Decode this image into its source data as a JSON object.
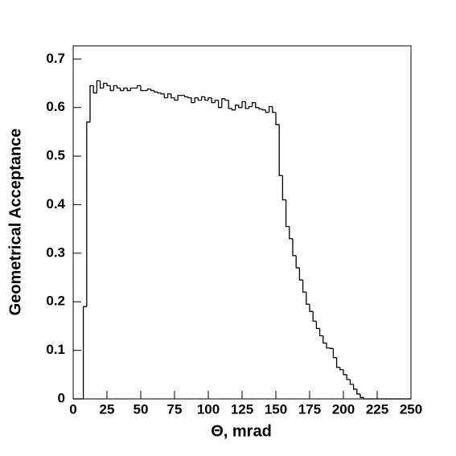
{
  "chart_data": {
    "type": "histogram",
    "x_label": "Θ, mrad",
    "y_label": "Geometrical Acceptance",
    "color": "#000000",
    "xlim": [
      0,
      250
    ],
    "ylim": [
      0,
      0.727
    ],
    "xticks": [
      0,
      25,
      50,
      75,
      100,
      125,
      150,
      175,
      200,
      225,
      250
    ],
    "yticks": [
      0,
      0.1,
      0.2,
      0.3,
      0.4,
      0.5,
      0.6,
      0.7
    ],
    "bins": [
      0,
      2.5,
      5,
      7.5,
      10,
      12.5,
      15,
      17.5,
      20,
      22.5,
      25,
      27.5,
      30,
      32.5,
      35,
      37.5,
      40,
      42.5,
      45,
      47.5,
      50,
      52.5,
      55,
      57.5,
      60,
      62.5,
      65,
      67.5,
      70,
      72.5,
      75,
      77.5,
      80,
      82.5,
      85,
      87.5,
      90,
      92.5,
      95,
      97.5,
      100,
      102.5,
      105,
      107.5,
      110,
      112.5,
      115,
      117.5,
      120,
      122.5,
      125,
      127.5,
      130,
      132.5,
      135,
      137.5,
      140,
      142.5,
      145,
      147.5,
      150,
      152.5,
      155,
      157.5,
      160,
      162.5,
      165,
      167.5,
      170,
      172.5,
      175,
      177.5,
      180,
      182.5,
      185,
      187.5,
      190,
      192.5,
      195,
      197.5,
      200,
      202.5,
      205,
      207.5,
      210,
      212.5,
      215,
      217.5,
      220,
      222.5,
      225,
      227.5,
      230,
      232.5,
      235,
      237.5,
      240,
      242.5,
      245,
      247.5,
      250
    ],
    "values": [
      0,
      0,
      0,
      0.19,
      0.57,
      0.645,
      0.63,
      0.655,
      0.64,
      0.65,
      0.645,
      0.635,
      0.645,
      0.64,
      0.635,
      0.64,
      0.635,
      0.64,
      0.64,
      0.645,
      0.635,
      0.635,
      0.638,
      0.635,
      0.632,
      0.63,
      0.628,
      0.62,
      0.628,
      0.62,
      0.615,
      0.625,
      0.625,
      0.622,
      0.62,
      0.61,
      0.62,
      0.615,
      0.622,
      0.615,
      0.62,
      0.61,
      0.615,
      0.6,
      0.618,
      0.615,
      0.598,
      0.595,
      0.605,
      0.6,
      0.612,
      0.598,
      0.602,
      0.61,
      0.6,
      0.597,
      0.595,
      0.59,
      0.602,
      0.59,
      0.565,
      0.46,
      0.41,
      0.355,
      0.33,
      0.295,
      0.27,
      0.245,
      0.22,
      0.195,
      0.18,
      0.16,
      0.145,
      0.13,
      0.115,
      0.105,
      0.104,
      0.085,
      0.065,
      0.06,
      0.05,
      0.04,
      0.03,
      0.02,
      0.01,
      0.003,
      0,
      0,
      0,
      0,
      0,
      0,
      0,
      0,
      0,
      0,
      0,
      0,
      0,
      0
    ]
  }
}
